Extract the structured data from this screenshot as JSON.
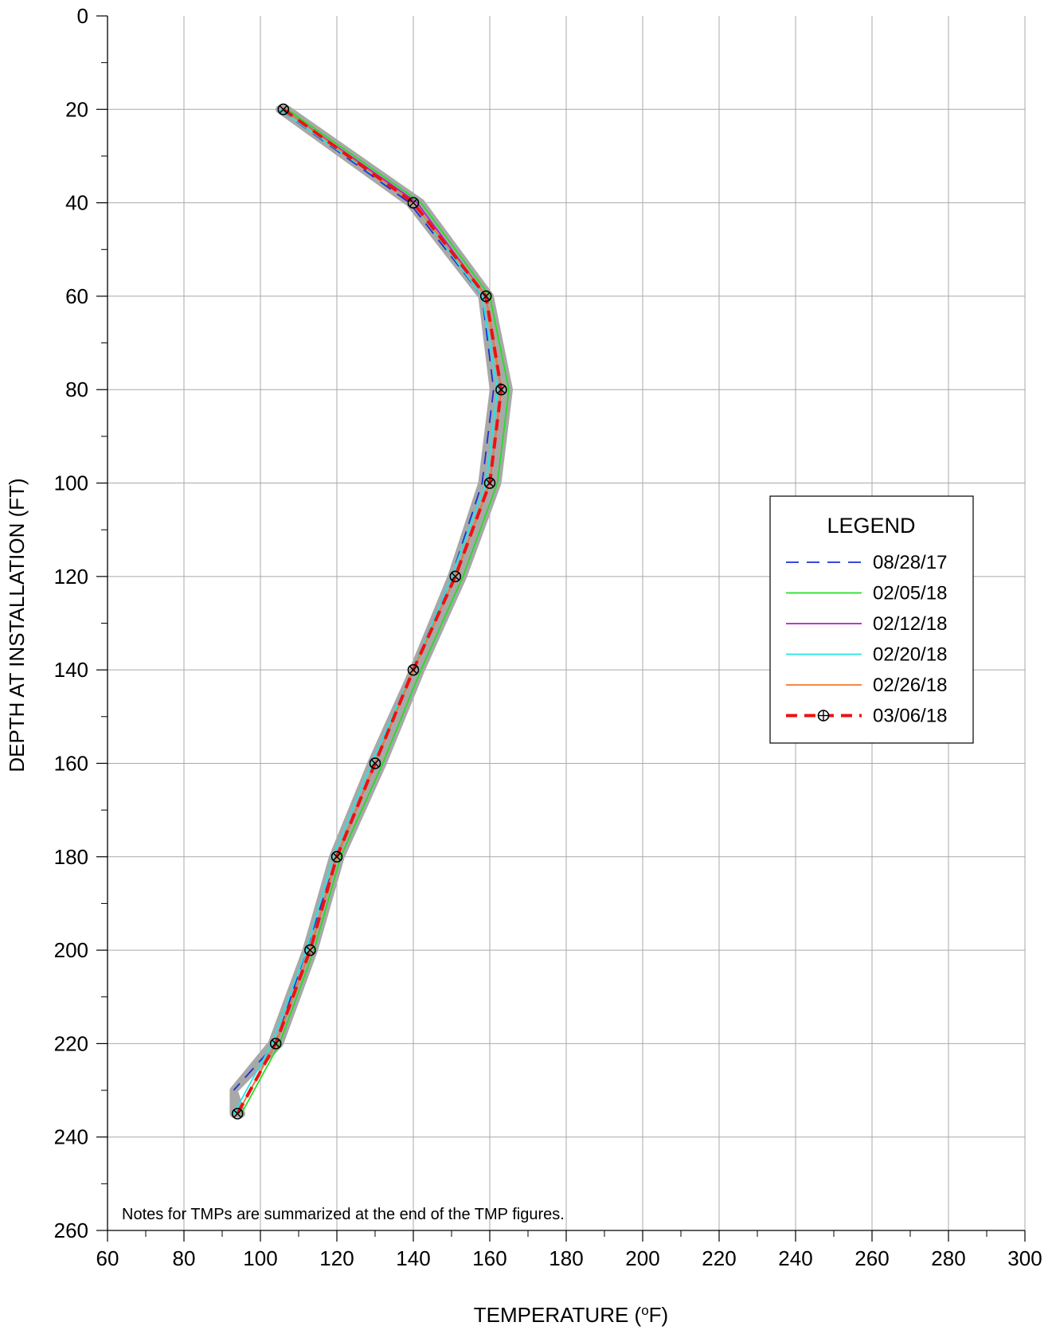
{
  "chart_data": {
    "type": "line",
    "xlabel": "TEMPERATURE (°F)",
    "xlabel_parts": {
      "pre": "TEMPERATURE (",
      "sup": "o",
      "post": "F)"
    },
    "ylabel": "DEPTH AT INSTALLATION (FT)",
    "xlim": [
      60,
      300
    ],
    "ylim": [
      260,
      0
    ],
    "y_inverted": true,
    "x_ticks": [
      60,
      80,
      100,
      120,
      140,
      160,
      180,
      200,
      220,
      240,
      260,
      280,
      300
    ],
    "y_ticks": [
      0,
      20,
      40,
      60,
      80,
      100,
      120,
      140,
      160,
      180,
      200,
      220,
      240,
      260
    ],
    "grid": true,
    "legend": {
      "title": "LEGEND",
      "position": "right-middle"
    },
    "annotation": "Notes for TMPs are summarized at the end of the TMP figures.",
    "envelope_color": "#a8a8a8",
    "series": [
      {
        "name": "08/28/17",
        "color": "#1c2fd6",
        "style": "dashed",
        "points": [
          [
            105,
            20
          ],
          [
            139,
            40
          ],
          [
            158,
            60
          ],
          [
            161,
            80
          ],
          [
            158,
            100
          ],
          [
            150,
            120
          ],
          [
            140,
            140
          ],
          [
            130,
            160
          ],
          [
            120,
            180
          ],
          [
            112,
            200
          ],
          [
            104,
            220
          ],
          [
            93,
            230
          ]
        ]
      },
      {
        "name": "02/05/18",
        "color": "#22e022",
        "style": "solid",
        "points": [
          [
            107,
            20
          ],
          [
            142,
            40
          ],
          [
            160,
            60
          ],
          [
            165,
            80
          ],
          [
            162,
            100
          ],
          [
            153,
            120
          ],
          [
            142,
            140
          ],
          [
            132,
            160
          ],
          [
            121,
            180
          ],
          [
            114,
            200
          ],
          [
            105,
            220
          ],
          [
            95,
            235
          ]
        ]
      },
      {
        "name": "02/12/18",
        "color": "#b01ec8",
        "style": "solid",
        "points": [
          [
            106,
            20
          ],
          [
            141,
            40
          ],
          [
            159,
            60
          ],
          [
            163,
            80
          ],
          [
            160,
            100
          ],
          [
            151,
            120
          ],
          [
            140,
            140
          ],
          [
            130,
            160
          ],
          [
            120,
            180
          ],
          [
            113,
            200
          ],
          [
            104,
            220
          ],
          [
            94,
            235
          ]
        ]
      },
      {
        "name": "02/20/18",
        "color": "#22e6e6",
        "style": "solid",
        "points": [
          [
            105,
            20
          ],
          [
            140,
            40
          ],
          [
            158,
            60
          ],
          [
            162,
            80
          ],
          [
            159,
            100
          ],
          [
            150,
            120
          ],
          [
            140,
            140
          ],
          [
            129,
            160
          ],
          [
            119,
            180
          ],
          [
            112,
            200
          ],
          [
            103,
            220
          ],
          [
            93,
            235
          ]
        ]
      },
      {
        "name": "02/26/18",
        "color": "#f07a2a",
        "style": "solid",
        "points": [
          [
            106,
            20
          ],
          [
            140,
            40
          ],
          [
            159,
            60
          ],
          [
            163,
            80
          ],
          [
            160,
            100
          ],
          [
            151,
            120
          ],
          [
            140,
            140
          ],
          [
            130,
            160
          ],
          [
            120,
            180
          ],
          [
            113,
            200
          ],
          [
            104,
            220
          ],
          [
            94,
            235
          ]
        ]
      },
      {
        "name": "03/06/18",
        "color": "#ee1111",
        "style": "dashed-bold",
        "marker": "circle-plus",
        "points": [
          [
            106,
            20
          ],
          [
            140,
            40
          ],
          [
            159,
            60
          ],
          [
            163,
            80
          ],
          [
            160,
            100
          ],
          [
            151,
            120
          ],
          [
            140,
            140
          ],
          [
            130,
            160
          ],
          [
            120,
            180
          ],
          [
            113,
            200
          ],
          [
            104,
            220
          ],
          [
            94,
            235
          ]
        ]
      }
    ]
  }
}
